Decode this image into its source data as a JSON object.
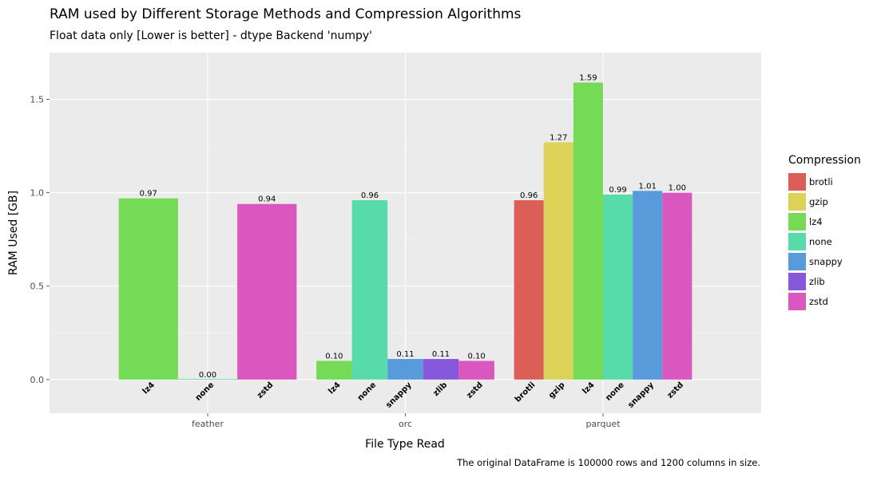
{
  "chart_data": {
    "type": "bar",
    "title": "RAM used by Different Storage Methods and Compression Algorithms",
    "subtitle": "Float data only [Lower is better] - dtype Backend 'numpy'",
    "xlabel": "File Type Read",
    "ylabel": "RAM Used [GB]",
    "caption": "The original DataFrame is 100000 rows and 1200 columns in size.",
    "ylim": [
      -0.18,
      1.75
    ],
    "y_ticks": [
      "0.0",
      "0.5",
      "1.0",
      "1.5"
    ],
    "grid": true,
    "legend_position": "right",
    "legend_title": "Compression",
    "legend": [
      {
        "name": "brotli",
        "color": "#db5f57"
      },
      {
        "name": "gzip",
        "color": "#dbd257"
      },
      {
        "name": "lz4",
        "color": "#75db57"
      },
      {
        "name": "none",
        "color": "#57dbaa"
      },
      {
        "name": "snappy",
        "color": "#579bdb"
      },
      {
        "name": "zlib",
        "color": "#8757db"
      },
      {
        "name": "zstd",
        "color": "#db57c0"
      }
    ],
    "groups": [
      {
        "name": "feather",
        "bars": [
          {
            "compression": "lz4",
            "value": 0.97,
            "label": "0.97"
          },
          {
            "compression": "none",
            "value": 0.0,
            "label": "0.00"
          },
          {
            "compression": "zstd",
            "value": 0.94,
            "label": "0.94"
          }
        ]
      },
      {
        "name": "orc",
        "bars": [
          {
            "compression": "lz4",
            "value": 0.1,
            "label": "0.10"
          },
          {
            "compression": "none",
            "value": 0.96,
            "label": "0.96"
          },
          {
            "compression": "snappy",
            "value": 0.11,
            "label": "0.11"
          },
          {
            "compression": "zlib",
            "value": 0.11,
            "label": "0.11"
          },
          {
            "compression": "zstd",
            "value": 0.1,
            "label": "0.10"
          }
        ]
      },
      {
        "name": "parquet",
        "bars": [
          {
            "compression": "brotli",
            "value": 0.96,
            "label": "0.96"
          },
          {
            "compression": "gzip",
            "value": 1.27,
            "label": "1.27"
          },
          {
            "compression": "lz4",
            "value": 1.59,
            "label": "1.59"
          },
          {
            "compression": "none",
            "value": 0.99,
            "label": "0.99"
          },
          {
            "compression": "snappy",
            "value": 1.01,
            "label": "1.01"
          },
          {
            "compression": "zstd",
            "value": 1.0,
            "label": "1.00"
          }
        ]
      }
    ]
  }
}
